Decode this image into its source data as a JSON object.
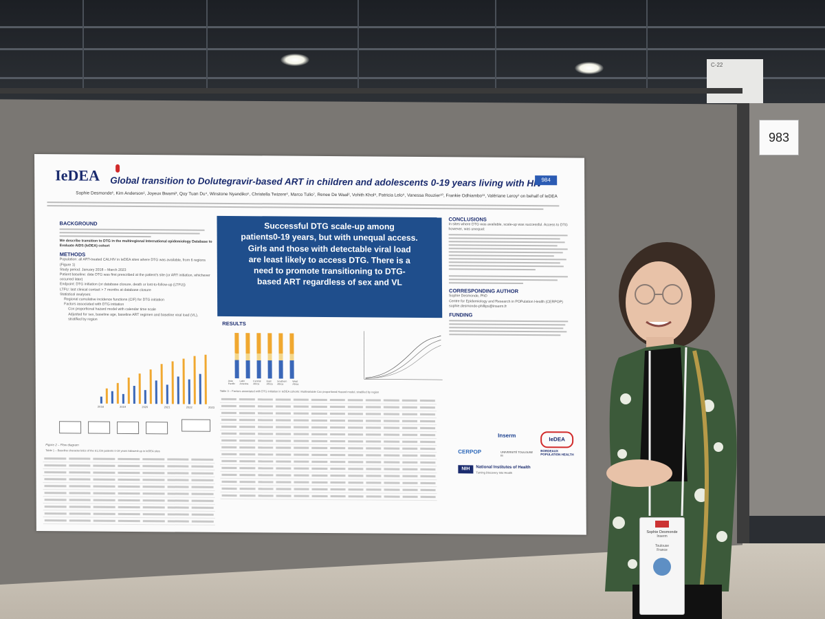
{
  "scene": {
    "booth_number": "983",
    "ceiling_sign": "C-22"
  },
  "poster": {
    "logo_text": "IeDEA",
    "title": "Global transition to Dolutegravir-based ART in children and adolescents 0-19 years living with HIV",
    "poster_id": "984",
    "authors": "Sophie Desmonde¹, Kim Anderson², Joyeux Bwami³, Quy Tuan Du⁴, Winstone Nyandiko⁵, Christella Twizere⁶, Marco Tulio⁷, Renee De Waal², Vohith Khol⁸, Patricia Lelo⁹, Vanessa Rouzier¹⁰, Frankie Odhiambo¹¹, Valériane Leroy¹ on behalf of IeDEA",
    "sections": {
      "background": "BACKGROUND",
      "methods": "METHODS",
      "results": "RESULTS",
      "conclusions": "CONCLUSIONS",
      "corresponding_author": "CORRESPONDING AUTHOR",
      "funding": "FUNDING"
    },
    "background_bold": "We describe transition to DTG in the multiregional International epidemiology Database to Evaluate AIDS (IeDEA) cohort",
    "methods_items": [
      "Population: all ART-treated CALHIV in IeDEA sites where DTG was available, from 6 regions (Figure 1)",
      "Study period: January 2018 – March 2023",
      "Patient baseline: date DTG was first prescribed at the patient's site (or ART initiation, whichever occurred later)",
      "Endpoint: DTG initiation (or database closure, death or lost-to-follow-up (LTFU))",
      "LTFU: last clinical contact > 7 months at database closure",
      "Statistical analyses:",
      "Regional cumulative incidence functions (CIF) for DTG initiation",
      "Factors associated with DTG initiation",
      "Cox proportional hazard model with calendar time scale",
      "Adjusted for sex, baseline age, baseline ART regimen and baseline viral load (VL), stratified by region"
    ],
    "highlight_lines": [
      "Successful DTG scale-up among",
      "patients0-19 years, but with unequal access.",
      "Girls and those with detectable viral load",
      "are least likely to access DTG. There is a",
      "need to promote transitioning to DTG-",
      "based ART regardless of sex and VL"
    ],
    "conclusions_lead": "In sites where DTG was available, scale-up was successful. Access to DTG however, was unequal:",
    "corresponding": {
      "name": "Sophie Desmonde, PhD",
      "center": "Centre for Epidemiology and Research in POPulation Health (CERPOP)",
      "email": "sophie.desmonde-phillips@inserm.fr"
    },
    "logo_labels": [
      "Inserm",
      "IeDEA",
      "CERPOP",
      "UNIVERSITÉ TOULOUSE III",
      "BORDEAUX POPULATION HEALTH"
    ],
    "nih_label": "National Institutes of Health",
    "nih_sub": "Turning Discovery Into Health",
    "table3_title": "Table 3 – Factors associated with DTG initiation in IeDEA cohorts: Multivariable Cox proportional Hazard model, stratified by region",
    "table1_title": "Table 1 – Baseline characteristics of the 61,234 patients 0-19 years followed-up in IeDEA sites",
    "figure2_caption": "Figure 2 – Flow diagram",
    "regions": [
      "Asia Pacific",
      "Latin America",
      "Central Africa",
      "East Africa",
      "Southern Africa",
      "West Africa"
    ],
    "years": [
      "2018",
      "2019",
      "2020",
      "2021",
      "2022",
      "2023"
    ]
  },
  "badge": {
    "name": "Sophie Desmonde",
    "org": "Inserm",
    "city": "Toulouse",
    "country": "France"
  },
  "colors": {
    "poster_blue": "#1f4e8c",
    "title_navy": "#1a2b6e",
    "bar_orange": "#f0a830",
    "bar_blue": "#3a67b8",
    "jacket_green": "#3c5a3a"
  }
}
